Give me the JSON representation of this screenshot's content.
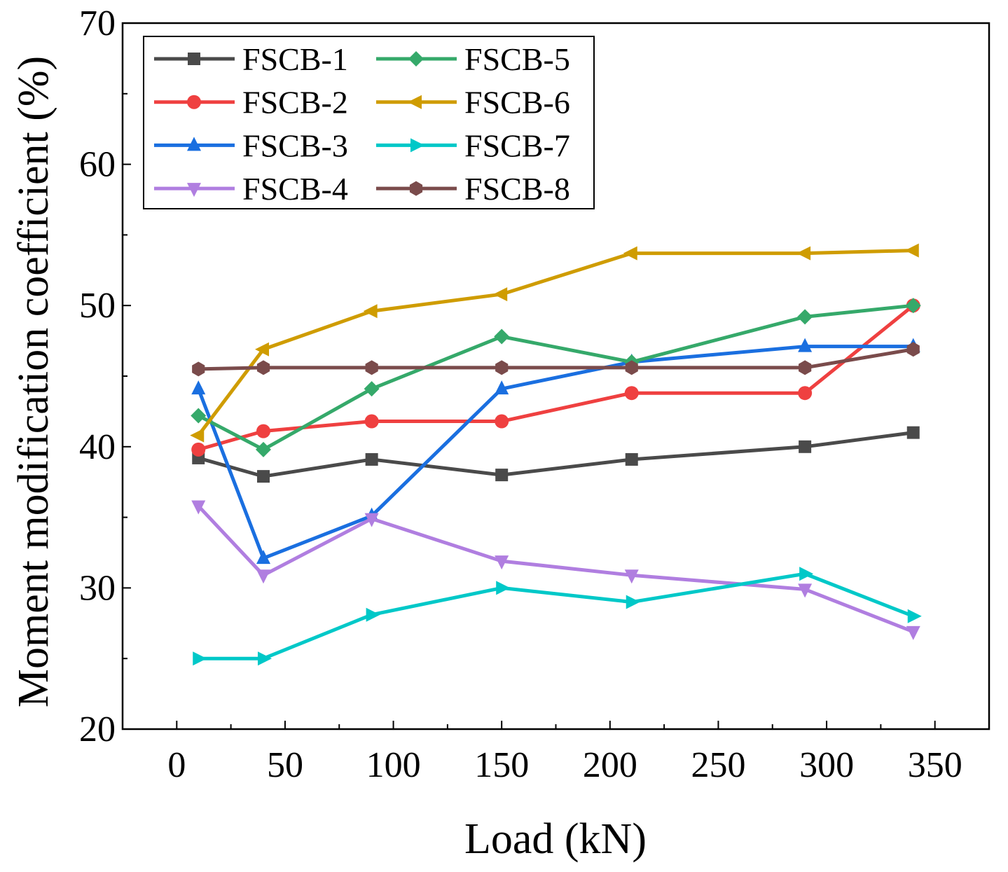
{
  "chart_data": {
    "type": "line",
    "title": "",
    "xlabel": "Load (kN)",
    "ylabel": "Moment modification coefficient (%)",
    "xlim": [
      -25,
      375
    ],
    "ylim": [
      20,
      70
    ],
    "xticks": [
      0,
      50,
      100,
      150,
      200,
      250,
      300,
      350
    ],
    "yticks": [
      20,
      30,
      40,
      50,
      60,
      70
    ],
    "grid": false,
    "legend_position": "top-left",
    "x": [
      10,
      40,
      90,
      150,
      210,
      290,
      340
    ],
    "series": [
      {
        "name": "FSCB-1",
        "color": "#4a4a4a",
        "marker": "square",
        "values": [
          39.2,
          37.9,
          39.1,
          38.0,
          39.1,
          40.0,
          41.0
        ]
      },
      {
        "name": "FSCB-2",
        "color": "#ef4040",
        "marker": "circle",
        "values": [
          39.8,
          41.1,
          41.8,
          41.8,
          43.8,
          43.8,
          50.0
        ]
      },
      {
        "name": "FSCB-3",
        "color": "#1a6fe0",
        "marker": "triangle-up",
        "values": [
          44.1,
          32.1,
          35.1,
          44.1,
          46.0,
          47.1,
          47.1
        ]
      },
      {
        "name": "FSCB-4",
        "color": "#b07ee0",
        "marker": "triangle-down",
        "values": [
          35.8,
          30.9,
          34.9,
          31.9,
          30.9,
          29.9,
          26.9
        ]
      },
      {
        "name": "FSCB-5",
        "color": "#35a96a",
        "marker": "diamond",
        "values": [
          42.2,
          39.8,
          44.1,
          47.8,
          46.0,
          49.2,
          50.0
        ]
      },
      {
        "name": "FSCB-6",
        "color": "#cf9c00",
        "marker": "triangle-left",
        "values": [
          40.8,
          46.9,
          49.6,
          50.8,
          53.7,
          53.7,
          53.9
        ]
      },
      {
        "name": "FSCB-7",
        "color": "#00c8c8",
        "marker": "triangle-right",
        "values": [
          25.0,
          25.0,
          28.1,
          30.0,
          29.0,
          31.0,
          28.0
        ]
      },
      {
        "name": "FSCB-8",
        "color": "#7a4b4b",
        "marker": "hexagon",
        "values": [
          45.5,
          45.6,
          45.6,
          45.6,
          45.6,
          45.6,
          46.9
        ]
      }
    ]
  }
}
